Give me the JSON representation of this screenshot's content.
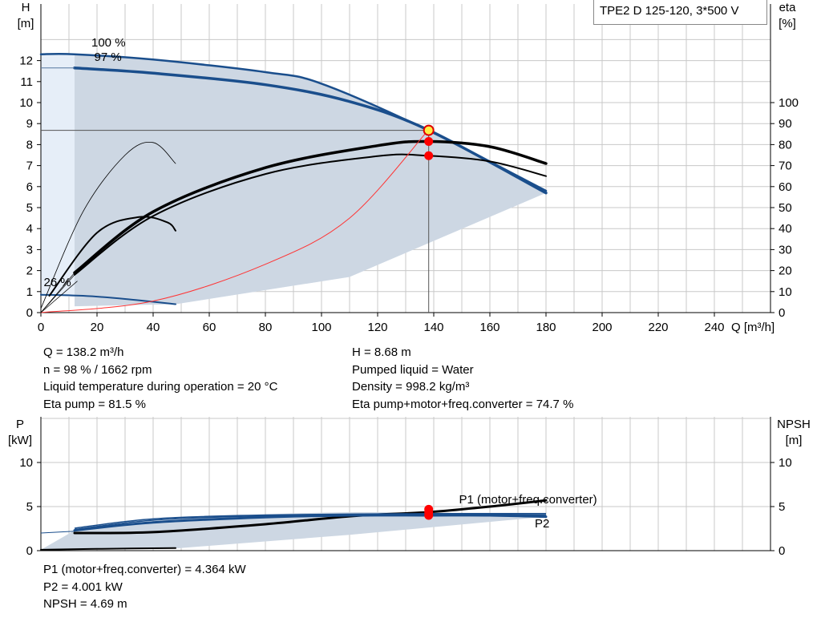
{
  "title": "TPE2 D 125-120, 3*500 V",
  "top_chart": {
    "y_left_label": [
      "H",
      "[m]"
    ],
    "y_right_label": [
      "eta",
      "[%]"
    ],
    "x_label": "Q [m³/h]",
    "x_ticks": [
      "0",
      "20",
      "40",
      "60",
      "80",
      "100",
      "120",
      "140",
      "160",
      "180",
      "200",
      "220",
      "240"
    ],
    "y_left_ticks": [
      "0",
      "1",
      "2",
      "3",
      "4",
      "5",
      "6",
      "7",
      "8",
      "9",
      "10",
      "11",
      "12"
    ],
    "y_right_ticks": [
      "0",
      "10",
      "20",
      "30",
      "40",
      "50",
      "60",
      "70",
      "80",
      "90",
      "100"
    ],
    "speed_labels": [
      "100 %",
      "97 %",
      "26 %"
    ]
  },
  "top_info": {
    "left": [
      "Q = 138.2 m³/h",
      "n = 98 % / 1662 rpm",
      "Liquid temperature during operation = 20 °C",
      "Eta pump = 81.5 %"
    ],
    "right": [
      "H = 8.68 m",
      "Pumped liquid = Water",
      "Density = 998.2 kg/m³",
      "Eta pump+motor+freq.converter = 74.7 %"
    ]
  },
  "bottom_chart": {
    "y_left_label": [
      "P",
      "[kW]"
    ],
    "y_right_label": [
      "NPSH",
      "[m]"
    ],
    "y_left_ticks": [
      "0",
      "5",
      "10"
    ],
    "y_right_ticks": [
      "0",
      "5",
      "10"
    ],
    "curve_labels": [
      "P1 (motor+freq.converter)",
      "P2"
    ]
  },
  "bottom_info": [
    "P1 (motor+freq.converter) = 4.364 kW",
    "P2 = 4.001 kW",
    "NPSH = 4.69 m"
  ],
  "colors": {
    "head_curve": "#1a4e8c",
    "envelope_fill": "#cdd7e3",
    "eta_curve": "#000000",
    "system_curve": "#ff3333",
    "operating_point": "#ff0000",
    "grid": "#c8c8c8"
  },
  "chart_data": [
    {
      "type": "line",
      "title": "",
      "xlabel": "Q [m³/h]",
      "ylabel": "H [m]",
      "y2label": "eta [%]",
      "xlim": [
        0,
        260
      ],
      "ylim": [
        0,
        13
      ],
      "y2lim": [
        0,
        130
      ],
      "series": [
        {
          "name": "100 %",
          "axis": "H",
          "x": [
            0,
            12,
            40,
            80,
            100,
            138,
            180
          ],
          "y": [
            12.3,
            12.3,
            12.05,
            11.45,
            10.9,
            8.68,
            5.8
          ]
        },
        {
          "name": "97 %",
          "axis": "H",
          "x": [
            12,
            40,
            80,
            110,
            138,
            180
          ],
          "y": [
            11.65,
            11.4,
            10.85,
            10.05,
            8.7,
            5.7
          ]
        },
        {
          "name": "26 %",
          "axis": "H",
          "x": [
            0,
            15,
            30,
            48
          ],
          "y": [
            0.85,
            0.8,
            0.65,
            0.4
          ]
        },
        {
          "name": "",
          "axis": "eta",
          "x": [
            12,
            40,
            80,
            120,
            138,
            160,
            180
          ],
          "y": [
            18,
            46,
            66,
            74.5,
            74.7,
            72,
            65
          ]
        },
        {
          "name": "",
          "axis": "eta",
          "x": [
            12,
            40,
            80,
            120,
            138,
            160,
            180
          ],
          "y": [
            19,
            48,
            69,
            79.5,
            81.5,
            79,
            71
          ]
        },
        {
          "name": "",
          "axis": "eta",
          "x": [
            0,
            15,
            30,
            40,
            48
          ],
          "y": [
            2,
            48,
            75,
            81,
            71
          ]
        },
        {
          "name": "",
          "axis": "eta",
          "x": [
            3,
            20,
            35,
            45,
            48
          ],
          "y": [
            8,
            38,
            45.5,
            43,
            39
          ]
        },
        {
          "name": "",
          "axis": "H",
          "x": [
            0,
            40,
            80,
            110,
            138
          ],
          "y": [
            0,
            0.55,
            2.3,
            4.5,
            8.68
          ]
        }
      ],
      "operating_point": {
        "Q": 138.2,
        "H": 8.68,
        "eta_pump": 81.5,
        "eta_total": 74.7
      }
    },
    {
      "type": "line",
      "title": "",
      "xlabel": "Q [m³/h]",
      "ylabel": "P [kW]",
      "y2label": "NPSH [m]",
      "xlim": [
        0,
        260
      ],
      "ylim": [
        0,
        12
      ],
      "series": [
        {
          "name": "P1 (motor+freq.converter)",
          "x": [
            12,
            40,
            80,
            110,
            138,
            160,
            180
          ],
          "y": [
            2.0,
            2.1,
            3.0,
            3.9,
            4.364,
            5.0,
            5.7
          ]
        },
        {
          "name": "P2",
          "x": [
            12,
            40,
            80,
            110,
            138,
            160,
            180
          ],
          "y": [
            2.3,
            3.2,
            3.8,
            4.0,
            4.001,
            4.0,
            3.85
          ]
        },
        {
          "name": "",
          "x": [
            0,
            20,
            48
          ],
          "y": [
            0.1,
            0.2,
            0.3
          ]
        }
      ],
      "operating_point": {
        "Q": 138.2,
        "P1": 4.364,
        "P2": 4.001,
        "NPSH": 4.69
      }
    }
  ]
}
